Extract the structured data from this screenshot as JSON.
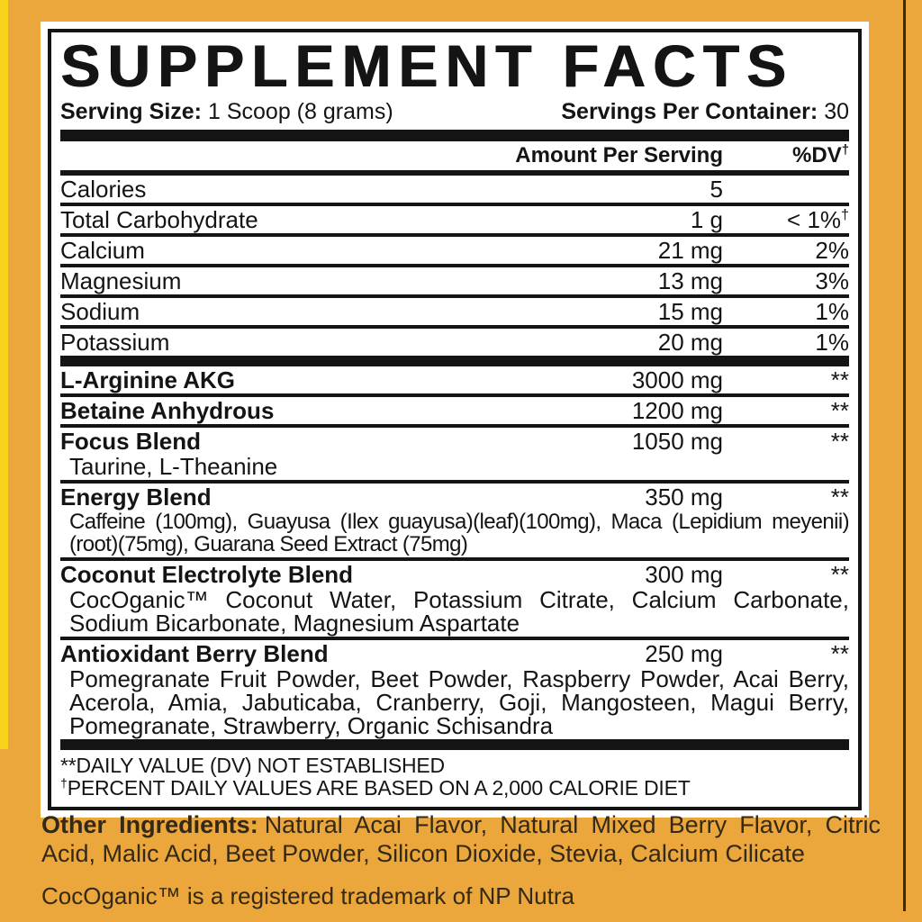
{
  "colors": {
    "background": "#EBA63C",
    "accent_strip": "#F8D21B",
    "edge_line": "#3A2A12",
    "panel": "#FFFFFF",
    "ink": "#141414",
    "below_ink": "#332916"
  },
  "label": {
    "title": "SUPPLEMENT FACTS",
    "serving": {
      "size_label": "Serving Size:",
      "size_value": "1 Scoop (8 grams)",
      "container_label": "Servings Per Container:",
      "container_value": "30"
    },
    "columns": {
      "amount": "Amount Per Serving",
      "dv": "%DV",
      "dv_dagger": "†"
    },
    "nutrients": [
      {
        "name": "Calories",
        "amount": "5",
        "dv": ""
      },
      {
        "name": "Total Carbohydrate",
        "amount": "1 g",
        "dv": "< 1%",
        "dv_sup": "†"
      },
      {
        "name": "Calcium",
        "amount": "21 mg",
        "dv": "2%"
      },
      {
        "name": "Magnesium",
        "amount": "13 mg",
        "dv": "3%"
      },
      {
        "name": "Sodium",
        "amount": "15 mg",
        "dv": "1%"
      },
      {
        "name": "Potassium",
        "amount": "20 mg",
        "dv": "1%"
      }
    ],
    "blends": [
      {
        "name": "L-Arginine AKG",
        "amount": "3000 mg",
        "dv": "**"
      },
      {
        "name": "Betaine Anhydrous",
        "amount": "1200 mg",
        "dv": "**"
      },
      {
        "name": "Focus Blend",
        "amount": "1050 mg",
        "dv": "**",
        "sub": "Taurine, L-Theanine"
      },
      {
        "name": "Energy Blend",
        "amount": "350 mg",
        "dv": "**",
        "sub": "Caffeine (100mg), Guayusa (Ilex guayusa)(leaf)(100mg), Maca (Lepidium meyenii) (root)(75mg), Guarana Seed Extract (75mg)"
      },
      {
        "name": "Coconut Electrolyte Blend",
        "amount": "300 mg",
        "dv": "**",
        "sub": "CocOganic™ Coconut Water, Potassium Citrate, Calcium Carbonate, Sodium Bicarbonate, Magnesium Aspartate"
      },
      {
        "name": "Antioxidant Berry Blend",
        "amount": "250 mg",
        "dv": "**",
        "sub": "Pomegranate Fruit Powder, Beet Powder, Raspberry Powder, Acai Berry, Acerola, Amia, Jabuticaba, Cranberry, Goji, Mangosteen, Magui Berry, Pomegranate, Strawberry, Organic Schisandra"
      }
    ],
    "footnotes": {
      "line1": "**DAILY VALUE (DV) NOT ESTABLISHED",
      "line2_dagger": "†",
      "line2": "PERCENT DAILY VALUES ARE BASED ON A 2,000 CALORIE DIET"
    }
  },
  "below": {
    "other_label": "Other Ingredients:",
    "other_value": "Natural Acai Flavor, Natural Mixed Berry Flavor, Citric Acid, Malic Acid, Beet Powder, Silicon Dioxide, Stevia, Calcium Cilicate",
    "trademark": "CocOganic™ is a registered trademark of NP Nutra"
  }
}
